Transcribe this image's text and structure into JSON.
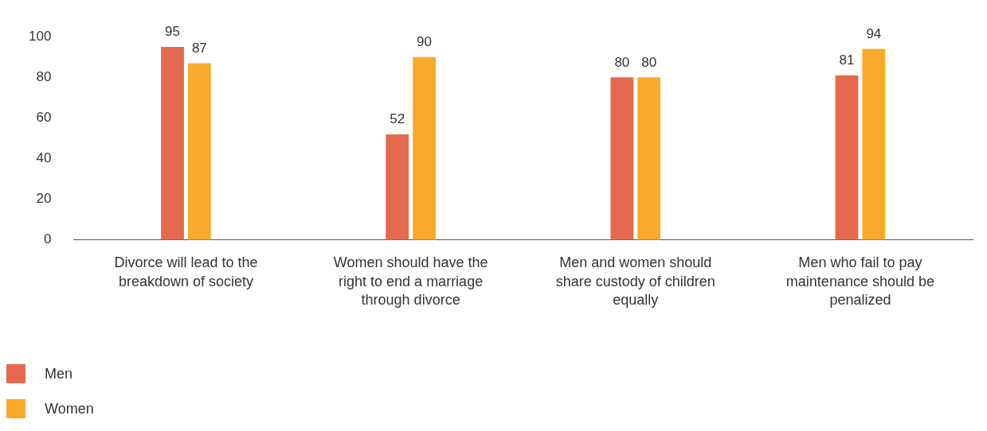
{
  "chart_data": {
    "type": "bar",
    "categories": [
      "Divorce will lead to the breakdown of society",
      "Women should have the right to end a marriage through divorce",
      "Men and women should share custody of children equally",
      "Men who fail to pay maintenance should be penalized"
    ],
    "series": [
      {
        "name": "Men",
        "color": "#e5694e",
        "values": [
          95,
          52,
          80,
          81
        ]
      },
      {
        "name": "Women",
        "color": "#f9aa2a",
        "values": [
          87,
          90,
          80,
          94
        ]
      }
    ],
    "ylim": [
      0,
      100
    ],
    "yticks": [
      0,
      20,
      40,
      60,
      80,
      100
    ],
    "grid": false,
    "legend": "bottom left",
    "data_labels": true
  }
}
